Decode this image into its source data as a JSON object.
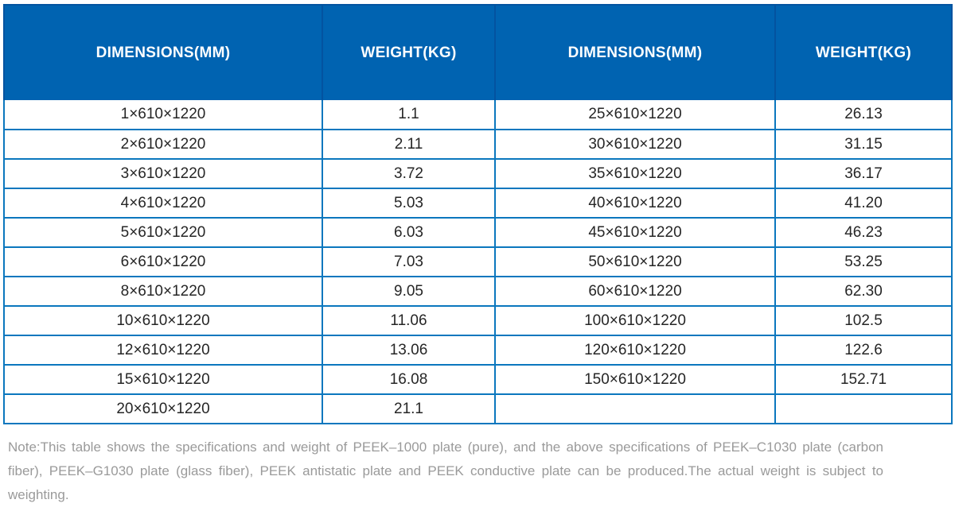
{
  "table": {
    "headers": [
      "DIMENSIONS(MM)",
      "WEIGHT(KG)",
      "DIMENSIONS(MM)",
      "WEIGHT(KG)"
    ],
    "rows": [
      [
        "1×610×1220",
        "1.1",
        "25×610×1220",
        "26.13"
      ],
      [
        "2×610×1220",
        "2.11",
        "30×610×1220",
        "31.15"
      ],
      [
        "3×610×1220",
        "3.72",
        "35×610×1220",
        "36.17"
      ],
      [
        "4×610×1220",
        "5.03",
        "40×610×1220",
        "41.20"
      ],
      [
        "5×610×1220",
        "6.03",
        "45×610×1220",
        "46.23"
      ],
      [
        "6×610×1220",
        "7.03",
        "50×610×1220",
        "53.25"
      ],
      [
        "8×610×1220",
        "9.05",
        "60×610×1220",
        "62.30"
      ],
      [
        "10×610×1220",
        "11.06",
        "100×610×1220",
        "102.5"
      ],
      [
        "12×610×1220",
        "13.06",
        "120×610×1220",
        "122.6"
      ],
      [
        "15×610×1220",
        "16.08",
        "150×610×1220",
        "152.71"
      ],
      [
        "20×610×1220",
        "21.1",
        "",
        ""
      ]
    ]
  },
  "note": {
    "text": "Note:This table shows the specifications and weight of PEEK–1000 plate (pure), and the above specifications of PEEK–C1030 plate (carbon fiber), PEEK–G1030 plate (glass fiber), PEEK antistatic plate and PEEK conductive plate can be produced.The actual weight is subject to weighting."
  },
  "colors": {
    "header_bg": "#0063B1",
    "header_divider": "#0353A0",
    "grid_line": "#0B77BE",
    "header_text": "#FFFFFF",
    "cell_text": "#262626",
    "note_text": "#9A9A9A"
  }
}
